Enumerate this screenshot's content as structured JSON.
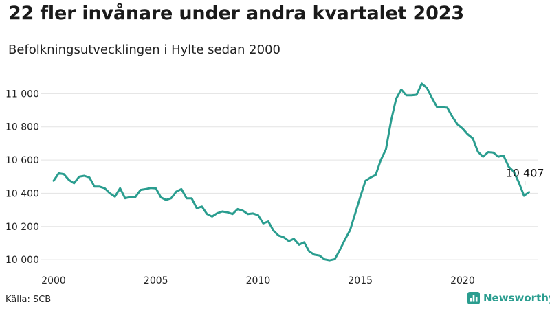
{
  "header": {
    "title": "22 fler invånare under andra kvartalet 2023",
    "subtitle": "Befolkningsutvecklingen i Hylte sedan 2000"
  },
  "footer": {
    "source": "Källa: SCB",
    "brand": "Newsworthy",
    "brand_icon": "bar-chart-logo-icon"
  },
  "colors": {
    "line": "#2a9d8f",
    "grid": "#e3e3e3",
    "text": "#1a1a1a"
  },
  "chart_data": {
    "type": "line",
    "title": "22 fler invånare under andra kvartalet 2023",
    "subtitle": "Befolkningsutvecklingen i Hylte sedan 2000",
    "xlim": [
      2000,
      2023.7
    ],
    "ylim": [
      9980,
      11080
    ],
    "xticks": [
      2000,
      2005,
      2010,
      2015,
      2020
    ],
    "xtick_labels": [
      "2000",
      "2005",
      "2010",
      "2015",
      "2020"
    ],
    "yticks": [
      10000,
      10200,
      10400,
      10600,
      10800,
      11000
    ],
    "ytick_labels": [
      "10 000",
      "10 200",
      "10 400",
      "10 600",
      "10 800",
      "11 000"
    ],
    "grid": "horizontal",
    "annotation": {
      "x": 2023.25,
      "y": 10407,
      "label": "10 407"
    },
    "series": [
      {
        "x": [
          2000.0,
          2000.25,
          2000.5,
          2000.75,
          2001.0,
          2001.25,
          2001.5,
          2001.75,
          2002.0,
          2002.25,
          2002.5,
          2002.75,
          2003.0,
          2003.25,
          2003.5,
          2003.75,
          2004.0,
          2004.25,
          2004.5,
          2004.75,
          2005.0,
          2005.25,
          2005.5,
          2005.75,
          2006.0,
          2006.25,
          2006.5,
          2006.75,
          2007.0,
          2007.25,
          2007.5,
          2007.75,
          2008.0,
          2008.25,
          2008.5,
          2008.75,
          2009.0,
          2009.25,
          2009.5,
          2009.75,
          2010.0,
          2010.25,
          2010.5,
          2010.75,
          2011.0,
          2011.25,
          2011.5,
          2011.75,
          2012.0,
          2012.25,
          2012.5,
          2012.75,
          2013.0,
          2013.25,
          2013.5,
          2013.75,
          2014.0,
          2014.25,
          2014.5,
          2014.75,
          2015.0,
          2015.25,
          2015.5,
          2015.75,
          2016.0,
          2016.25,
          2016.5,
          2016.75,
          2017.0,
          2017.25,
          2017.5,
          2017.75,
          2018.0,
          2018.25,
          2018.5,
          2018.75,
          2019.0,
          2019.25,
          2019.5,
          2019.75,
          2020.0,
          2020.25,
          2020.5,
          2020.75,
          2021.0,
          2021.25,
          2021.5,
          2021.75,
          2022.0,
          2022.25,
          2022.5,
          2022.75,
          2023.0,
          2023.25
        ],
        "y": [
          10475,
          10520,
          10515,
          10480,
          10460,
          10500,
          10505,
          10495,
          10440,
          10440,
          10430,
          10400,
          10380,
          10430,
          10370,
          10378,
          10378,
          10420,
          10425,
          10432,
          10430,
          10375,
          10360,
          10370,
          10410,
          10425,
          10370,
          10370,
          10310,
          10320,
          10275,
          10260,
          10280,
          10290,
          10285,
          10275,
          10305,
          10295,
          10275,
          10278,
          10268,
          10218,
          10230,
          10175,
          10145,
          10135,
          10112,
          10125,
          10090,
          10105,
          10050,
          10030,
          10025,
          10002,
          9996,
          10003,
          10060,
          10122,
          10178,
          10280,
          10380,
          10475,
          10495,
          10510,
          10600,
          10665,
          10835,
          10970,
          11025,
          10990,
          10990,
          10993,
          11060,
          11035,
          10975,
          10918,
          10918,
          10915,
          10860,
          10815,
          10790,
          10755,
          10730,
          10650,
          10620,
          10648,
          10645,
          10620,
          10627,
          10560,
          10530,
          10465,
          10385,
          10407
        ]
      }
    ]
  }
}
